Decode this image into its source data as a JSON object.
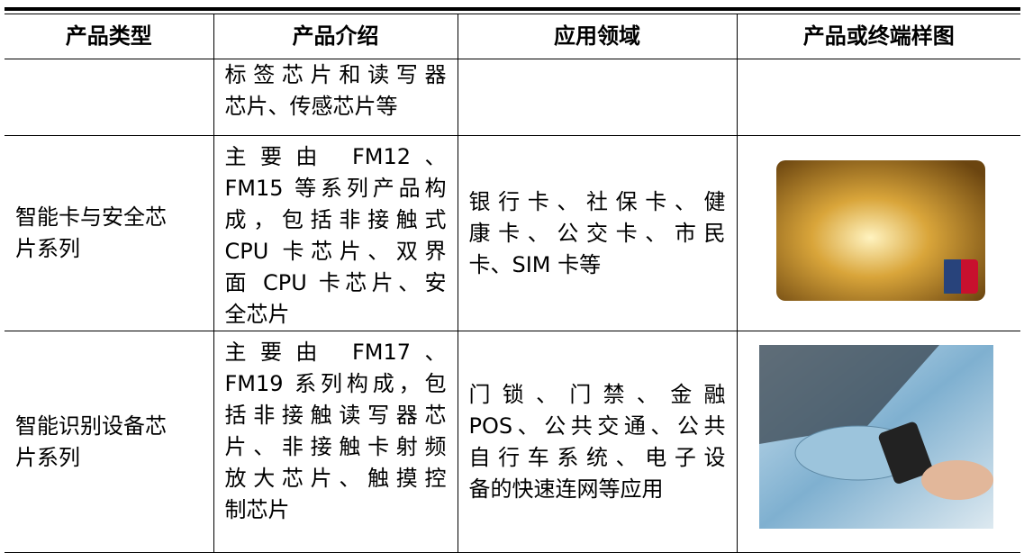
{
  "table": {
    "headers": [
      "产品类型",
      "产品介绍",
      "应用领域",
      "产品或终端样图"
    ],
    "rows": [
      [
        [],
        [
          "标签芯片和读写器",
          "芯片、传感芯片等"
        ],
        []
      ],
      [
        [
          "智能卡与安全芯",
          "片系列"
        ],
        [
          "主要由 FM12、",
          "FM15 等系列产品构",
          "成，包括非接触式",
          "CPU 卡芯片、双界",
          "面 CPU 卡芯片、安",
          "全芯片"
        ],
        [
          "银行卡、社保卡、健",
          "康卡、公交卡、市民",
          "卡、SIM 卡等"
        ]
      ],
      [
        [
          "智能识别设备芯",
          "片系列"
        ],
        [
          "主要由 FM17、",
          "FM19 系列构成，包",
          "括非接触读写器芯",
          "片、非接触卡射频",
          "放大芯片、触摸控",
          "制芯片"
        ],
        [
          "门锁、门禁、金融",
          "POS、公共交通、公共",
          "自行车系统、电子设",
          "备的快速连网等应用"
        ]
      ]
    ]
  }
}
